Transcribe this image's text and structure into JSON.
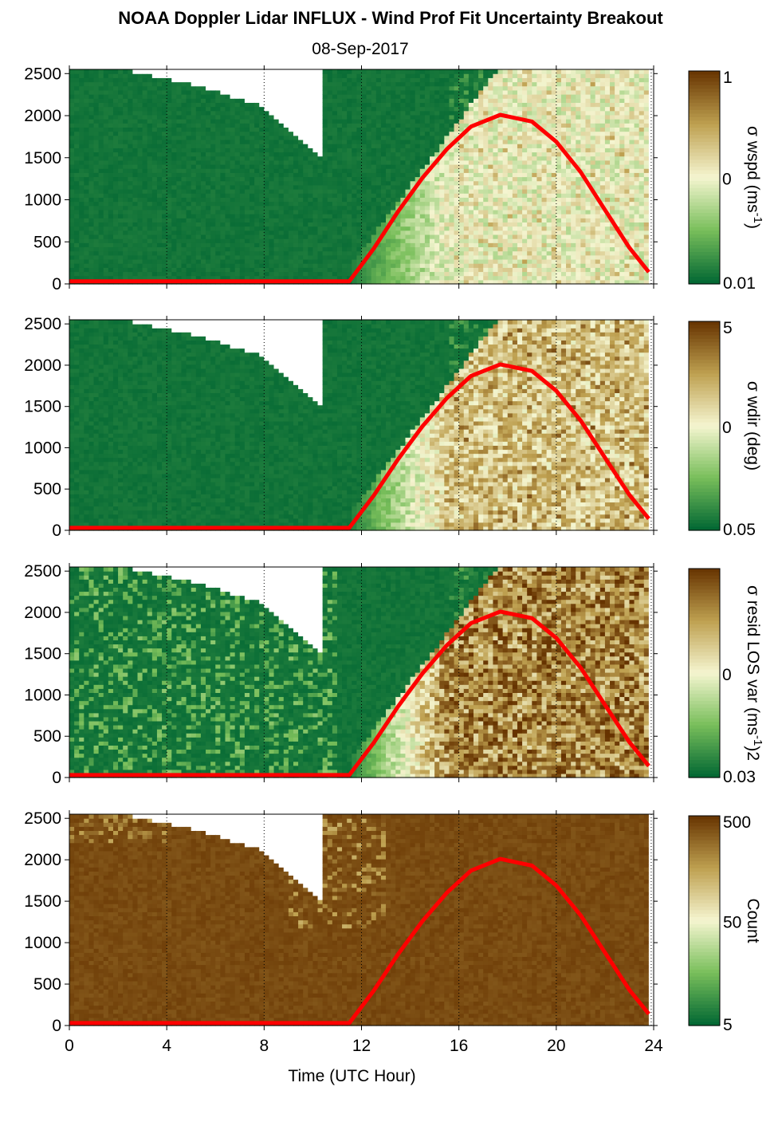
{
  "title": "NOAA Doppler Lidar INFLUX - Wind Prof Fit Uncertainty Breakout",
  "subtitle": "08-Sep-2017",
  "colors": {
    "dark_green": "#006633",
    "light": "#f5f5d0",
    "dark_brown": "#663300",
    "no_data": "#ffffff",
    "sun_curve": "#ff0000"
  },
  "chart_data": [
    {
      "type": "heatmap",
      "name": "wspd",
      "xlabel": "",
      "ylabel": "",
      "xlim": [
        0,
        24
      ],
      "ylim": [
        0,
        2550
      ],
      "xticks": [
        0,
        4,
        8,
        12,
        16,
        20,
        24
      ],
      "xtick_labels": [
        "",
        "",
        "",
        "",
        "",
        "",
        ""
      ],
      "yticks": [
        0,
        500,
        1000,
        1500,
        2000,
        2500
      ],
      "ytick_labels": [
        "0",
        "500",
        "1000",
        "1500",
        "2000",
        "2500"
      ],
      "grid_x": true,
      "colorbar": {
        "scale": "log",
        "ticks": [
          "1",
          "0",
          "0.01"
        ],
        "label": "σ wspd (ms-1)",
        "label_main": "σ wspd (ms",
        "label_sup": "-1",
        "label_end": ")"
      },
      "intensity": 0.5,
      "seed": 11
    },
    {
      "type": "heatmap",
      "name": "wdir",
      "xlabel": "",
      "ylabel": "",
      "xlim": [
        0,
        24
      ],
      "ylim": [
        0,
        2550
      ],
      "xticks": [
        0,
        4,
        8,
        12,
        16,
        20,
        24
      ],
      "xtick_labels": [
        "",
        "",
        "",
        "",
        "",
        "",
        ""
      ],
      "yticks": [
        0,
        500,
        1000,
        1500,
        2000,
        2500
      ],
      "ytick_labels": [
        "0",
        "500",
        "1000",
        "1500",
        "2000",
        "2500"
      ],
      "grid_x": true,
      "colorbar": {
        "scale": "log",
        "ticks": [
          "5",
          "0",
          "0.05"
        ],
        "label": "σ wdir (deg)",
        "label_main": "σ wdir (deg)",
        "label_sup": "",
        "label_end": ""
      },
      "intensity": 0.68,
      "seed": 23
    },
    {
      "type": "heatmap",
      "name": "resid",
      "xlabel": "",
      "ylabel": "",
      "xlim": [
        0,
        24
      ],
      "ylim": [
        0,
        2550
      ],
      "xticks": [
        0,
        4,
        8,
        12,
        16,
        20,
        24
      ],
      "xtick_labels": [
        "",
        "",
        "",
        "",
        "",
        "",
        ""
      ],
      "yticks": [
        0,
        500,
        1000,
        1500,
        2000,
        2500
      ],
      "ytick_labels": [
        "0",
        "500",
        "1000",
        "1500",
        "2000",
        "2500"
      ],
      "grid_x": true,
      "colorbar": {
        "scale": "log",
        "ticks": [
          "",
          "0",
          "0.03"
        ],
        "label": "σ resid LOS var (ms-1)2",
        "label_main": "σ resid LOS var (ms",
        "label_sup": "-1",
        "label_end": ")2"
      },
      "intensity": 0.85,
      "seed": 37
    },
    {
      "type": "heatmap",
      "name": "count",
      "xlabel": "Time (UTC Hour)",
      "ylabel": "",
      "xlim": [
        0,
        24
      ],
      "ylim": [
        0,
        2550
      ],
      "xticks": [
        0,
        4,
        8,
        12,
        16,
        20,
        24
      ],
      "xtick_labels": [
        "0",
        "4",
        "8",
        "12",
        "16",
        "20",
        "24"
      ],
      "yticks": [
        0,
        500,
        1000,
        1500,
        2000,
        2500
      ],
      "ytick_labels": [
        "0",
        "500",
        "1000",
        "1500",
        "2000",
        "2500"
      ],
      "grid_x": true,
      "colorbar": {
        "scale": "log",
        "ticks": [
          "500",
          "50",
          "5"
        ],
        "label": "Count",
        "label_main": "Count",
        "label_sup": "",
        "label_end": ""
      },
      "intensity": 0.0,
      "seed": 53
    }
  ],
  "sun_curve": {
    "x": [
      0,
      11.5,
      12.5,
      13.5,
      14.5,
      15.5,
      16.5,
      17.7,
      19.0,
      20.0,
      21.0,
      22.0,
      23.0,
      23.8
    ],
    "y": [
      30,
      30,
      420,
      860,
      1260,
      1600,
      1870,
      2010,
      1930,
      1690,
      1330,
      880,
      430,
      140
    ]
  }
}
